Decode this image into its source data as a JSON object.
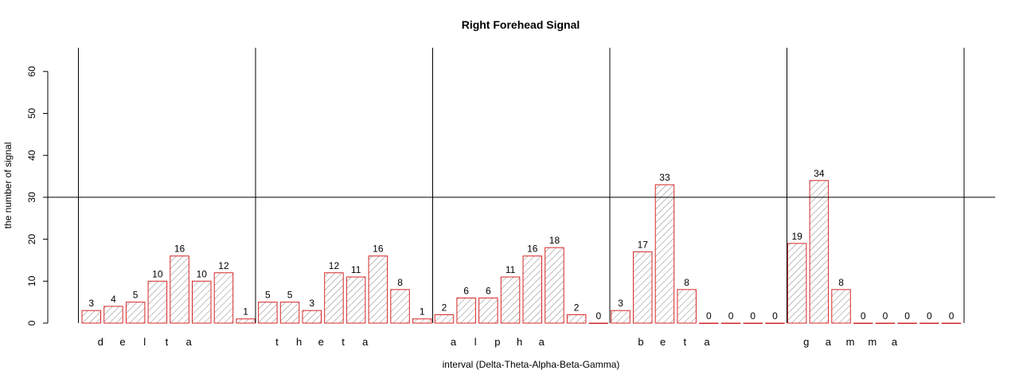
{
  "chart_data": {
    "type": "bar",
    "title": "Right Forehead Signal",
    "xlabel": "interval (Delta-Theta-Alpha-Beta-Gamma)",
    "ylabel": "the number of signal",
    "ylim": [
      0,
      60
    ],
    "yticks": [
      0,
      10,
      20,
      30,
      40,
      50,
      60
    ],
    "reference_line": 30,
    "grid": false,
    "groups": [
      {
        "name": "delta",
        "letters": [
          "d",
          "e",
          "l",
          "t",
          "a"
        ],
        "values": [
          3,
          4,
          5,
          10,
          16,
          10,
          12,
          1
        ]
      },
      {
        "name": "theta",
        "letters": [
          "t",
          "h",
          "e",
          "t",
          "a"
        ],
        "values": [
          5,
          5,
          3,
          12,
          11,
          16,
          8,
          1
        ]
      },
      {
        "name": "alpha",
        "letters": [
          "a",
          "l",
          "p",
          "h",
          "a"
        ],
        "values": [
          2,
          6,
          6,
          11,
          16,
          18,
          2,
          0
        ]
      },
      {
        "name": "beta",
        "letters": [
          "b",
          "e",
          "t",
          "a"
        ],
        "values": [
          3,
          17,
          33,
          8,
          0,
          0,
          0,
          0
        ]
      },
      {
        "name": "gamma",
        "letters": [
          "g",
          "a",
          "m",
          "m",
          "a"
        ],
        "values": [
          19,
          34,
          8,
          0,
          0,
          0,
          0,
          0
        ]
      }
    ],
    "colors": {
      "bar_border": "#d62728",
      "hatch": "#555555",
      "axis": "#000000"
    }
  }
}
